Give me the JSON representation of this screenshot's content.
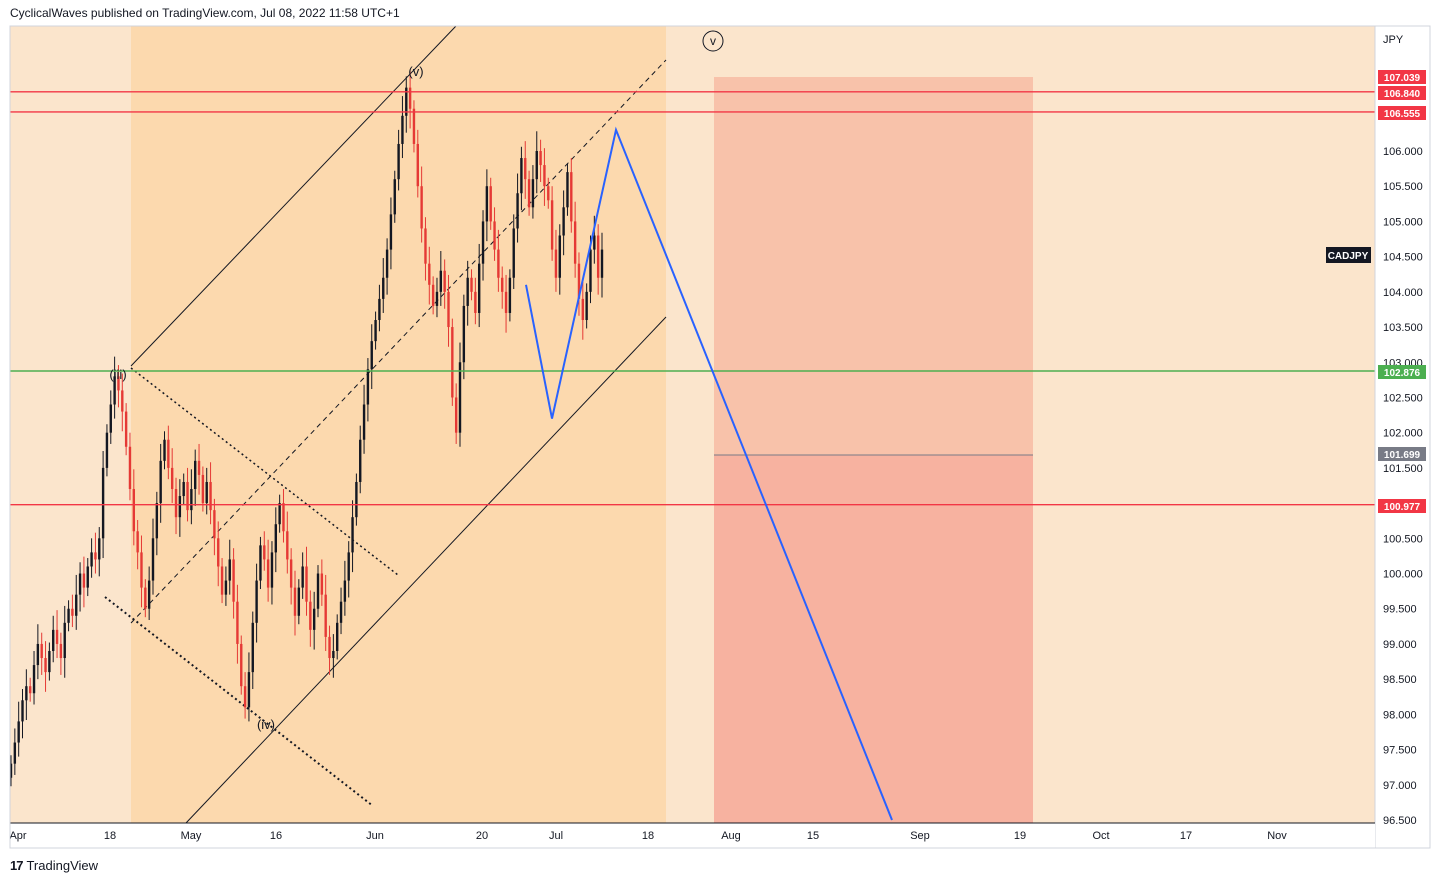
{
  "header": {
    "publisher_line": "CyclicalWaves published on TradingView.com, Jul 08, 2022 11:58 UTC+1"
  },
  "footer": {
    "brand": "TradingView",
    "logo_glyph": "17"
  },
  "chart_data": {
    "type": "candlestick",
    "symbol": "CADJPY",
    "currency": "JPY",
    "ylim": [
      96.5,
      107.5
    ],
    "y_ticks": [
      "96.500",
      "97.000",
      "97.500",
      "98.000",
      "98.500",
      "99.000",
      "99.500",
      "100.000",
      "100.500",
      "101.000",
      "101.500",
      "102.000",
      "102.500",
      "103.000",
      "103.500",
      "104.000",
      "104.500",
      "105.000",
      "105.500",
      "106.000"
    ],
    "x_tick_labels": [
      "Apr",
      "18",
      "May",
      "16",
      "Jun",
      "20",
      "Jul",
      "18",
      "Aug",
      "15",
      "Sep",
      "19",
      "Oct",
      "17",
      "Nov"
    ],
    "price_levels": [
      {
        "label": "107.039",
        "value": 107.039,
        "color": "#f23645"
      },
      {
        "label": "106.840",
        "value": 106.84,
        "color": "#f23645"
      },
      {
        "label": "106.555",
        "value": 106.555,
        "color": "#f23645"
      },
      {
        "label": "102.876",
        "value": 102.876,
        "color": "#4caf50"
      },
      {
        "label": "101.699",
        "value": 101.699,
        "color": "#787b86"
      },
      {
        "label": "100.977",
        "value": 100.977,
        "color": "#f23645"
      }
    ],
    "wave_labels": [
      "(iii)",
      "(iv)",
      "(v)",
      "v"
    ],
    "projection_path_values": [
      104.1,
      102.2,
      106.3,
      96.5
    ],
    "colors": {
      "background": "#fbe5cc",
      "channel_fill": "#fcd9ae",
      "risk_zone_upper": "#f8c2aa",
      "risk_zone_lower": "#f7b2a0",
      "candle_up": "#131722",
      "candle_down": "#e53935",
      "projection": "#2962ff",
      "resistance": "#f23645",
      "support": "#4caf50"
    },
    "close_series": [
      97.3,
      97.6,
      97.9,
      98.2,
      98.4,
      98.3,
      98.7,
      99.0,
      98.8,
      98.6,
      98.9,
      99.2,
      99.0,
      98.8,
      99.3,
      99.5,
      99.4,
      99.7,
      100.0,
      99.8,
      100.1,
      100.3,
      100.2,
      100.5,
      101.5,
      102.0,
      102.4,
      102.8,
      102.6,
      102.3,
      101.8,
      101.2,
      100.6,
      100.3,
      99.8,
      99.5,
      99.9,
      100.5,
      101.0,
      101.6,
      101.9,
      101.5,
      101.2,
      100.8,
      101.1,
      101.3,
      100.9,
      101.2,
      101.6,
      101.4,
      101.0,
      101.3,
      100.9,
      100.5,
      100.1,
      99.7,
      99.9,
      100.2,
      99.6,
      99.0,
      98.4,
      98.1,
      98.6,
      99.3,
      99.9,
      100.4,
      100.2,
      99.8,
      100.3,
      100.7,
      101.0,
      100.6,
      100.2,
      99.8,
      99.4,
      99.8,
      100.1,
      99.6,
      99.2,
      99.5,
      100.0,
      99.7,
      99.1,
      98.8,
      98.9,
      99.3,
      99.6,
      99.9,
      100.3,
      100.8,
      101.3,
      101.9,
      102.4,
      102.9,
      103.3,
      103.6,
      103.9,
      104.2,
      104.6,
      105.1,
      105.6,
      106.1,
      106.5,
      106.9,
      106.6,
      106.1,
      105.5,
      104.9,
      104.4,
      104.1,
      103.8,
      104.0,
      104.3,
      104.0,
      103.5,
      102.5,
      102.0,
      103.0,
      103.8,
      104.2,
      104.0,
      103.7,
      104.4,
      105.0,
      105.5,
      105.0,
      104.6,
      104.2,
      104.0,
      103.7,
      104.2,
      104.9,
      105.4,
      105.9,
      105.6,
      105.2,
      105.6,
      106.0,
      105.8,
      105.5,
      105.3,
      104.6,
      104.2,
      104.8,
      105.2,
      105.7,
      105.0,
      104.4,
      103.9,
      103.6,
      104.0,
      104.6,
      104.8,
      104.2,
      104.6
    ]
  }
}
